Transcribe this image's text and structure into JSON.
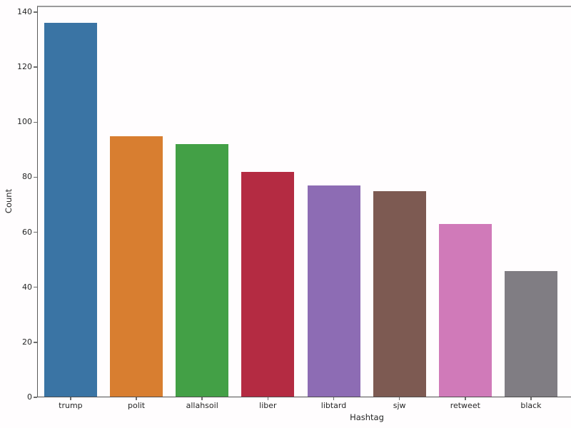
{
  "chart_data": {
    "type": "bar",
    "title": "",
    "xlabel": "Hashtag",
    "ylabel": "Count",
    "categories": [
      "trump",
      "polit",
      "allahsoil",
      "liber",
      "libtard",
      "sjw",
      "retweet",
      "black"
    ],
    "values": [
      136,
      95,
      92,
      82,
      77,
      75,
      63,
      46
    ],
    "bar_colors": [
      "#3a74a4",
      "#d87e30",
      "#43a046",
      "#b42b42",
      "#8d6cb4",
      "#7d5a52",
      "#d07ab9",
      "#807d83"
    ],
    "yticks": [
      0,
      20,
      40,
      60,
      80,
      100,
      120,
      140
    ],
    "ylim": [
      0,
      142.3
    ],
    "xlim_categories": 8,
    "grid": false,
    "legend": null,
    "tick_label_color": "#262626",
    "spine_color": "#5a5a5a",
    "background_color": "#fffdfe"
  }
}
